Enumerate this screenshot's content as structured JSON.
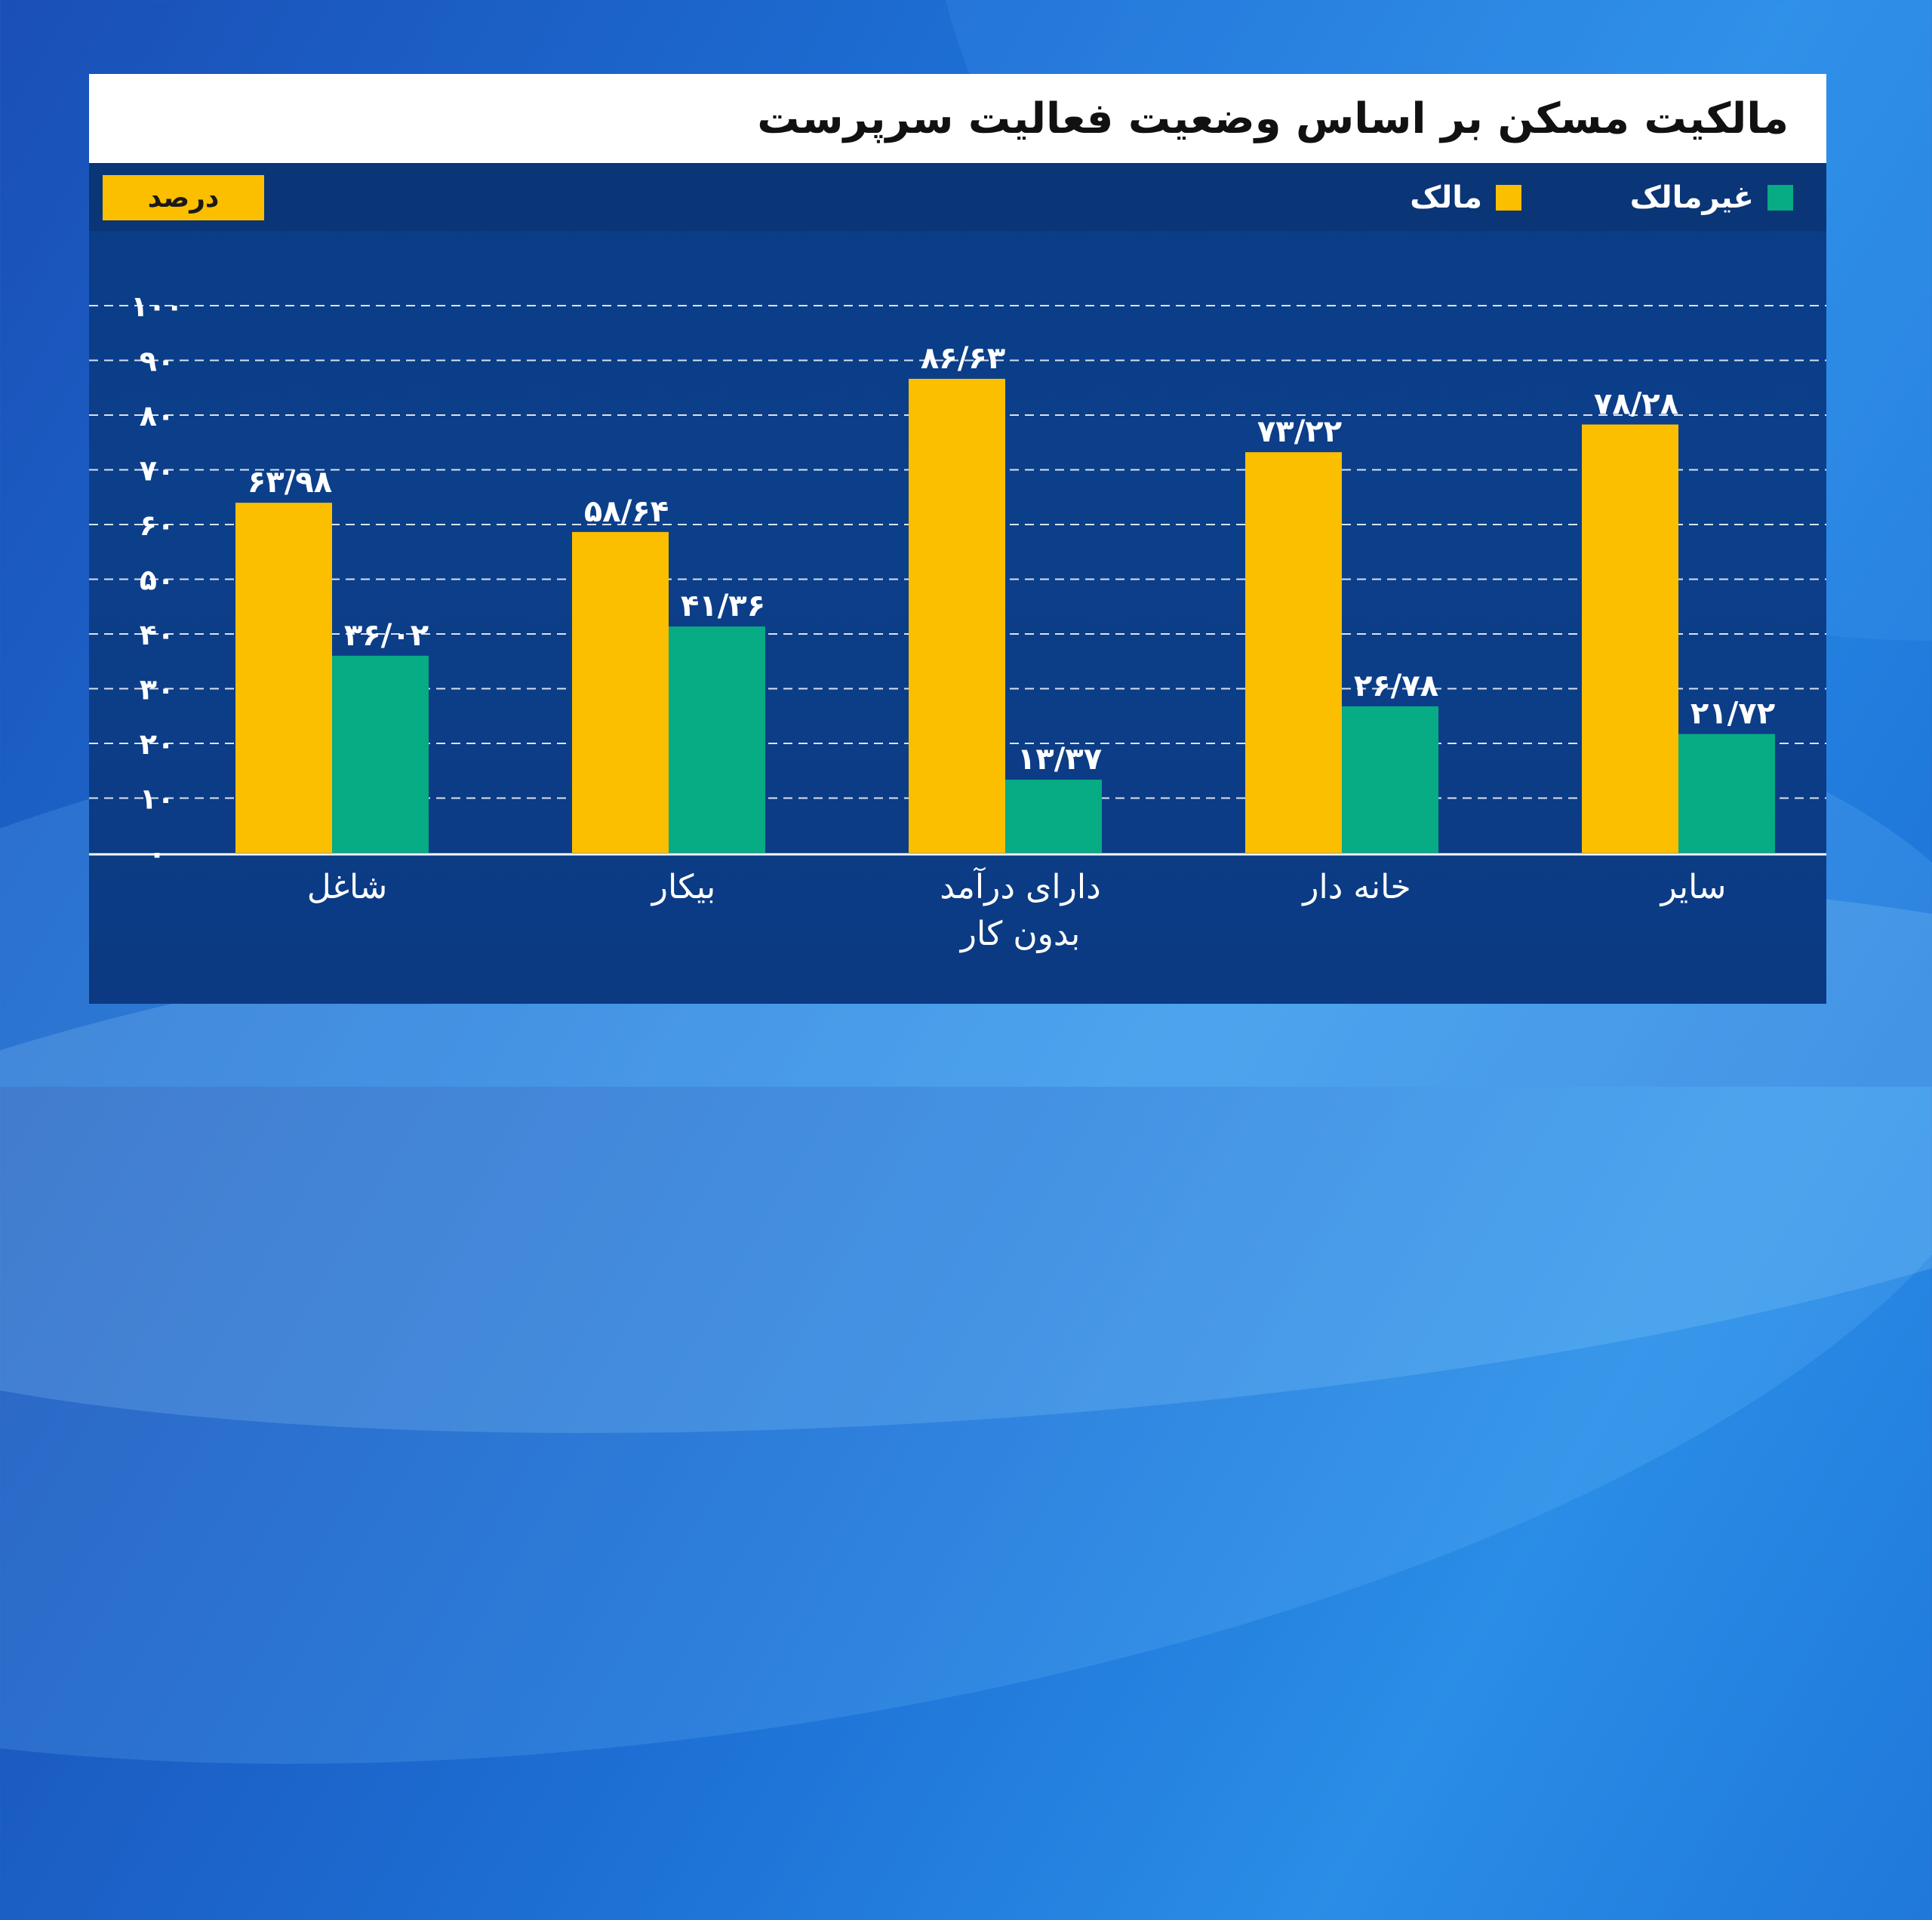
{
  "title": "مالکیت مسکن بر اساس وضعیت فعالیت سرپرست",
  "unit_label": "درصد",
  "colors": {
    "owner": "#fbbf00",
    "non_owner": "#07ab84"
  },
  "legend": {
    "owner": "مالک",
    "non_owner": "غیرمالک"
  },
  "chart_data": {
    "type": "bar",
    "title": "مالکیت مسکن بر اساس وضعیت فعالیت سرپرست",
    "ylabel": "درصد",
    "xlabel": "",
    "ylim": [
      0,
      100
    ],
    "yticks": [
      0,
      10,
      20,
      30,
      40,
      50,
      60,
      70,
      80,
      90,
      100
    ],
    "ytick_labels": [
      "۰",
      "۱۰",
      "۲۰",
      "۳۰",
      "۴۰",
      "۵۰",
      "۶۰",
      "۷۰",
      "۸۰",
      "۹۰",
      "۱۰۰"
    ],
    "grid": true,
    "legend_position": "top-right",
    "categories": [
      [
        "شاغل"
      ],
      [
        "بیکار"
      ],
      [
        "دارای درآمد",
        "بدون کار"
      ],
      [
        "خانه دار"
      ],
      [
        "سایر"
      ]
    ],
    "series": [
      {
        "name": "مالک",
        "values": [
          63.98,
          58.64,
          86.63,
          73.22,
          78.28
        ],
        "labels": [
          "۶۳/۹۸",
          "۵۸/۶۴",
          "۸۶/۶۳",
          "۷۳/۲۲",
          "۷۸/۲۸"
        ]
      },
      {
        "name": "غیرمالک",
        "values": [
          36.02,
          41.36,
          13.37,
          26.78,
          21.72
        ],
        "labels": [
          "۳۶/۰۲",
          "۴۱/۳۶",
          "۱۳/۳۷",
          "۲۶/۷۸",
          "۲۱/۷۲"
        ]
      }
    ]
  }
}
